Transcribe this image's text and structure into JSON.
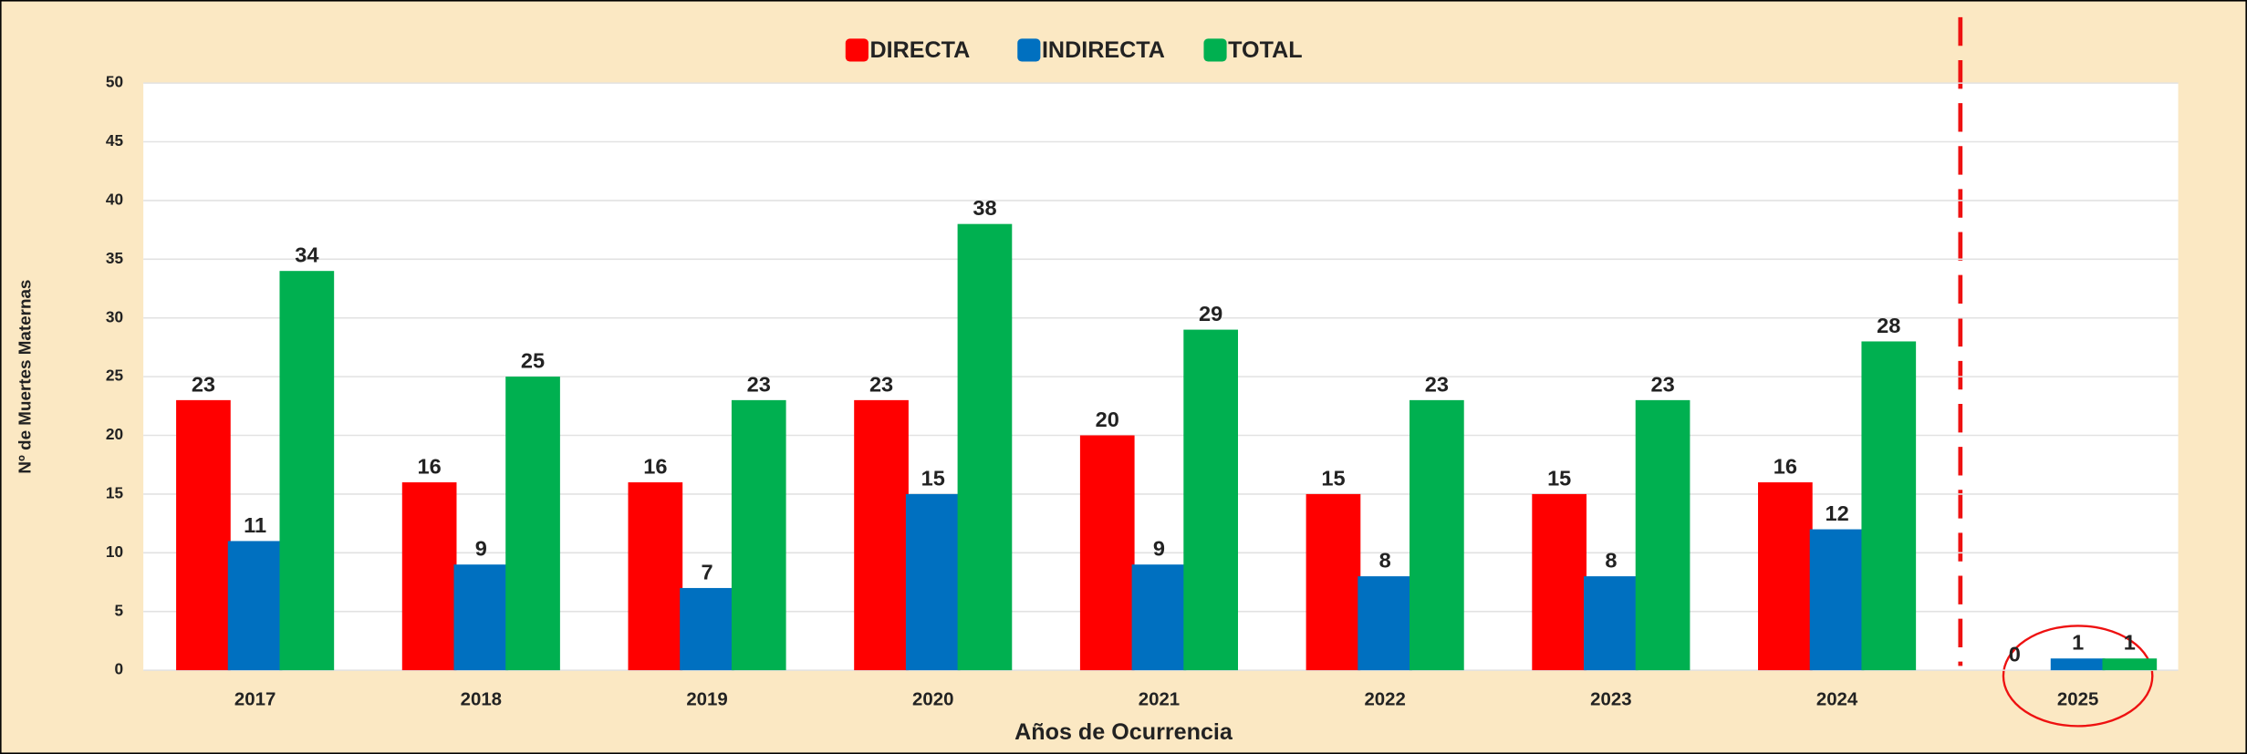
{
  "chart_data": {
    "type": "bar",
    "categories": [
      "2017",
      "2018",
      "2019",
      "2020",
      "2021",
      "2022",
      "2023",
      "2024",
      "2025"
    ],
    "series": [
      {
        "name": "DIRECTA",
        "color": "#ff0000",
        "values": [
          23,
          16,
          16,
          23,
          20,
          15,
          15,
          16,
          0
        ]
      },
      {
        "name": "INDIRECTA",
        "color": "#0070c0",
        "values": [
          11,
          9,
          7,
          15,
          9,
          8,
          8,
          12,
          1
        ]
      },
      {
        "name": "TOTAL",
        "color": "#00b050",
        "values": [
          34,
          25,
          23,
          38,
          29,
          23,
          23,
          28,
          1
        ]
      }
    ],
    "x_label": "Años de Ocurrencia",
    "y_label": "Nº de Muertes Maternas",
    "ylim": [
      0,
      50
    ],
    "yticks": [
      0,
      5,
      10,
      15,
      20,
      25,
      30,
      35,
      40,
      45,
      50
    ],
    "grid": true,
    "legend": "top"
  }
}
